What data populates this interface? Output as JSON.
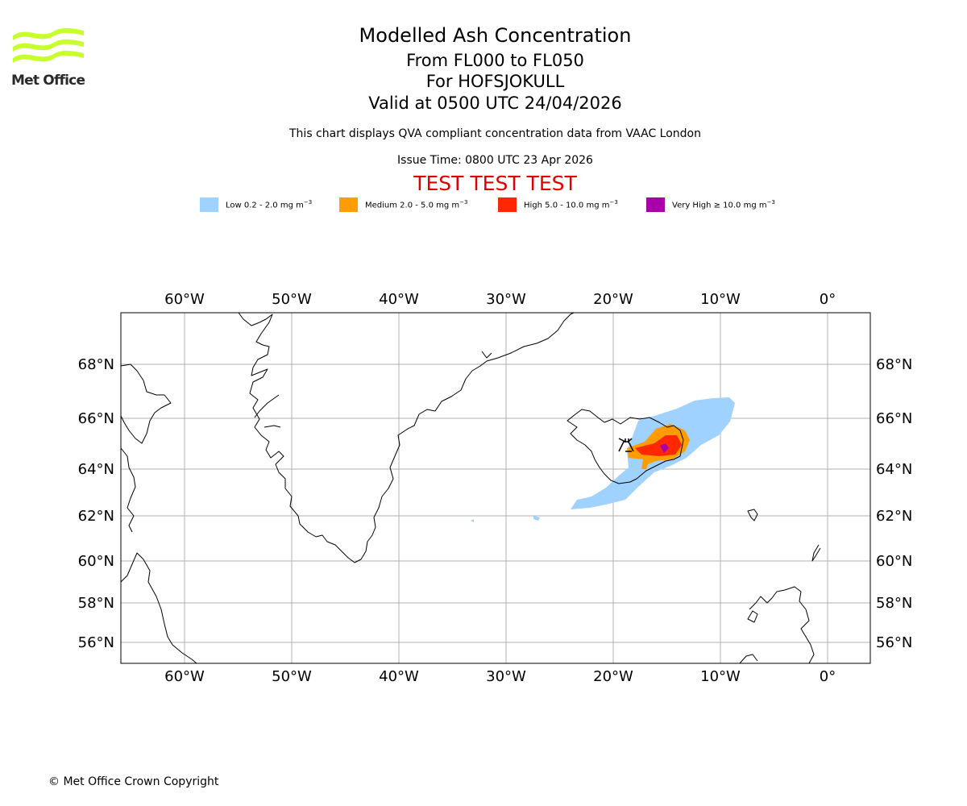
{
  "logo": {
    "text": "Met Office",
    "color": "#c7ff2e"
  },
  "header": {
    "title": "Modelled Ash Concentration",
    "levels": "From FL000 to FL050",
    "volcano": "For HOFSJOKULL",
    "valid": "Valid at 0500 UTC 24/04/2026",
    "description": "This chart displays QVA compliant concentration data from VAAC London",
    "issue_time": "Issue Time: 0800 UTC 23 Apr 2026",
    "test_banner": "TEST TEST TEST"
  },
  "legend": [
    {
      "label": "Low 0.2 - 2.0 mg m",
      "unit_exp": "−3",
      "color": "#a0d2ff"
    },
    {
      "label": "Medium 2.0 - 5.0 mg m",
      "unit_exp": "−3",
      "color": "#ff9c00"
    },
    {
      "label": "High 5.0 - 10.0 mg m",
      "unit_exp": "−3",
      "color": "#ff2800"
    },
    {
      "label": "Very High  ≥  10.0 mg m",
      "unit_exp": "−3",
      "color": "#aa00aa"
    }
  ],
  "map": {
    "lon_ticks": [
      "60°W",
      "50°W",
      "40°W",
      "30°W",
      "20°W",
      "10°W",
      "0°"
    ],
    "lat_ticks": [
      "68°N",
      "66°N",
      "64°N",
      "62°N",
      "60°N",
      "58°N",
      "56°N"
    ],
    "volcano_marker": "volcano-symbol"
  },
  "footer": {
    "copyright": "© Met Office Crown Copyright"
  }
}
